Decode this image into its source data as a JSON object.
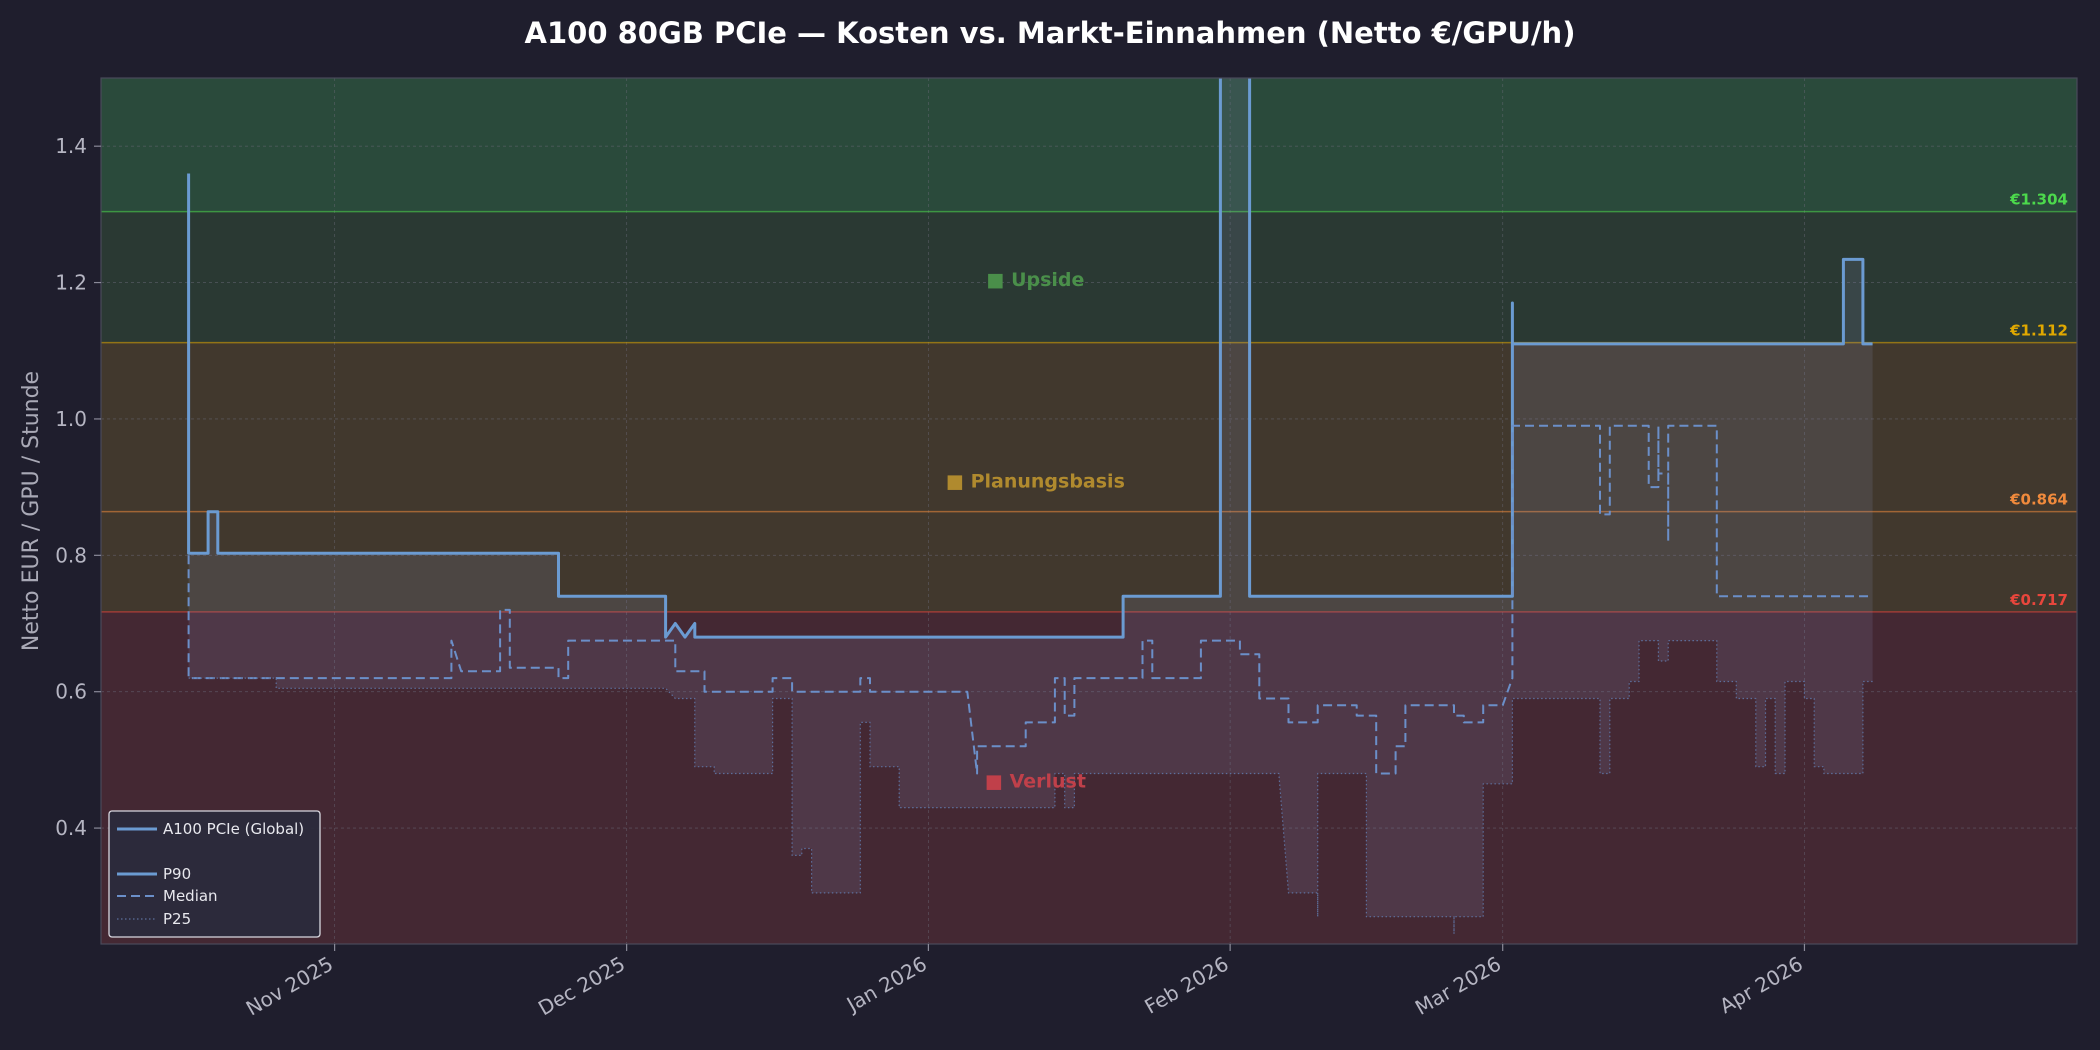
{
  "chart_data": {
    "type": "line",
    "title": "A100 80GB PCIe — Kosten vs. Markt-Einnahmen (Netto €/GPU/h)",
    "xlabel": "",
    "ylabel": "Netto EUR / GPU / Stunde",
    "xlim": [
      "2025-10-08",
      "2026-04-29"
    ],
    "ylim": [
      0.23,
      1.5
    ],
    "yticks": [
      0.4,
      0.6,
      0.8,
      1.0,
      1.2,
      1.4
    ],
    "ytick_labels": [
      "0.4",
      "0.6",
      "0.8",
      "1.0",
      "1.2",
      "1.4"
    ],
    "xticks": [
      "2025-11-01",
      "2025-12-01",
      "2026-01-01",
      "2026-02-01",
      "2026-03-01",
      "2026-04-01"
    ],
    "xtick_labels": [
      "Nov 2025",
      "Dec 2025",
      "Jan 2026",
      "Feb 2026",
      "Mar 2026",
      "Apr 2026"
    ],
    "grid": true,
    "thresholds": [
      {
        "value": 1.304,
        "label": "€1.304",
        "color": "#4cd94c"
      },
      {
        "value": 1.112,
        "label": "€1.112",
        "color": "#e0a800"
      },
      {
        "value": 0.864,
        "label": "€0.864",
        "color": "#f08a3c"
      },
      {
        "value": 0.717,
        "label": "€0.717",
        "color": "#e8463c"
      }
    ],
    "zones": [
      {
        "name": "Upside",
        "label": "■ Upside",
        "from": 1.112,
        "to": 1.5,
        "color": "#4a8f4a",
        "label_y": 1.205
      },
      {
        "name": "Planungsbasis",
        "label": "■ Planungsbasis",
        "from": 0.717,
        "to": 1.112,
        "color": "#b08a2e",
        "label_y": 0.91
      },
      {
        "name": "Verlust",
        "label": "■ Verlust",
        "from": 0.23,
        "to": 0.717,
        "color": "#c0404a",
        "label_y": 0.47
      }
    ],
    "zone_label_date": "2026-01-12",
    "legend": {
      "position": "lower-left",
      "entries": [
        {
          "label": "A100 PCIe (Global)",
          "style": "solid"
        },
        {
          "label": "P90",
          "style": "solid"
        },
        {
          "label": "Median",
          "style": "dashed"
        },
        {
          "label": "P25",
          "style": "dotted"
        }
      ]
    },
    "series": [
      {
        "name": "P90",
        "style": "solid",
        "color": "#6b9bd2",
        "points": [
          [
            "2025-10-17",
            1.36
          ],
          [
            "2025-10-17",
            0.803
          ],
          [
            "2025-10-19",
            0.803
          ],
          [
            "2025-10-19",
            0.864
          ],
          [
            "2025-10-20",
            0.864
          ],
          [
            "2025-10-20",
            0.803
          ],
          [
            "2025-11-24",
            0.803
          ],
          [
            "2025-11-24",
            0.74
          ],
          [
            "2025-12-05",
            0.74
          ],
          [
            "2025-12-05",
            0.68
          ],
          [
            "2025-12-06",
            0.7
          ],
          [
            "2025-12-07",
            0.68
          ],
          [
            "2025-12-08",
            0.7
          ],
          [
            "2025-12-08",
            0.68
          ],
          [
            "2026-01-21",
            0.68
          ],
          [
            "2026-01-21",
            0.74
          ],
          [
            "2026-01-31",
            0.74
          ],
          [
            "2026-01-31",
            1.6
          ],
          [
            "2026-02-03",
            1.6
          ],
          [
            "2026-02-03",
            0.74
          ],
          [
            "2026-03-02",
            0.74
          ],
          [
            "2026-03-02",
            1.17
          ],
          [
            "2026-03-02",
            1.11
          ],
          [
            "2026-04-05",
            1.11
          ],
          [
            "2026-04-05",
            1.234
          ],
          [
            "2026-04-07",
            1.234
          ],
          [
            "2026-04-07",
            1.11
          ],
          [
            "2026-04-08",
            1.11
          ]
        ]
      },
      {
        "name": "Median",
        "style": "dashed",
        "color": "#6b8fc9",
        "points": [
          [
            "2025-10-17",
            0.8
          ],
          [
            "2025-10-17",
            0.62
          ],
          [
            "2025-11-13",
            0.62
          ],
          [
            "2025-11-13",
            0.675
          ],
          [
            "2025-11-14",
            0.63
          ],
          [
            "2025-11-18",
            0.63
          ],
          [
            "2025-11-18",
            0.72
          ],
          [
            "2025-11-19",
            0.72
          ],
          [
            "2025-11-19",
            0.635
          ],
          [
            "2025-11-24",
            0.635
          ],
          [
            "2025-11-24",
            0.62
          ],
          [
            "2025-11-25",
            0.62
          ],
          [
            "2025-11-25",
            0.675
          ],
          [
            "2025-12-06",
            0.675
          ],
          [
            "2025-12-06",
            0.63
          ],
          [
            "2025-12-09",
            0.63
          ],
          [
            "2025-12-09",
            0.6
          ],
          [
            "2025-12-16",
            0.6
          ],
          [
            "2025-12-16",
            0.62
          ],
          [
            "2025-12-18",
            0.62
          ],
          [
            "2025-12-18",
            0.6
          ],
          [
            "2025-12-25",
            0.6
          ],
          [
            "2025-12-25",
            0.62
          ],
          [
            "2025-12-26",
            0.62
          ],
          [
            "2025-12-26",
            0.6
          ],
          [
            "2026-01-05",
            0.6
          ],
          [
            "2026-01-06",
            0.48
          ],
          [
            "2026-01-06",
            0.52
          ],
          [
            "2026-01-11",
            0.52
          ],
          [
            "2026-01-11",
            0.555
          ],
          [
            "2026-01-14",
            0.555
          ],
          [
            "2026-01-14",
            0.62
          ],
          [
            "2026-01-15",
            0.62
          ],
          [
            "2026-01-15",
            0.565
          ],
          [
            "2026-01-16",
            0.565
          ],
          [
            "2026-01-16",
            0.62
          ],
          [
            "2026-01-23",
            0.62
          ],
          [
            "2026-01-23",
            0.675
          ],
          [
            "2026-01-24",
            0.675
          ],
          [
            "2026-01-24",
            0.62
          ],
          [
            "2026-01-29",
            0.62
          ],
          [
            "2026-01-29",
            0.675
          ],
          [
            "2026-02-02",
            0.675
          ],
          [
            "2026-02-02",
            0.655
          ],
          [
            "2026-02-04",
            0.655
          ],
          [
            "2026-02-04",
            0.59
          ],
          [
            "2026-02-07",
            0.59
          ],
          [
            "2026-02-07",
            0.555
          ],
          [
            "2026-02-10",
            0.555
          ],
          [
            "2026-02-10",
            0.58
          ],
          [
            "2026-02-14",
            0.58
          ],
          [
            "2026-02-14",
            0.565
          ],
          [
            "2026-02-16",
            0.565
          ],
          [
            "2026-02-16",
            0.48
          ],
          [
            "2026-02-18",
            0.48
          ],
          [
            "2026-02-18",
            0.52
          ],
          [
            "2026-02-19",
            0.52
          ],
          [
            "2026-02-19",
            0.58
          ],
          [
            "2026-02-24",
            0.58
          ],
          [
            "2026-02-24",
            0.565
          ],
          [
            "2026-02-25",
            0.565
          ],
          [
            "2026-02-25",
            0.555
          ],
          [
            "2026-02-27",
            0.555
          ],
          [
            "2026-02-27",
            0.58
          ],
          [
            "2026-03-01",
            0.58
          ],
          [
            "2026-03-02",
            0.62
          ],
          [
            "2026-03-02",
            0.99
          ],
          [
            "2026-03-11",
            0.99
          ],
          [
            "2026-03-11",
            0.86
          ],
          [
            "2026-03-12",
            0.86
          ],
          [
            "2026-03-12",
            0.99
          ],
          [
            "2026-03-16",
            0.99
          ],
          [
            "2026-03-16",
            0.9
          ],
          [
            "2026-03-17",
            0.9
          ],
          [
            "2026-03-17",
            0.99
          ],
          [
            "2026-03-17",
            0.92
          ],
          [
            "2026-03-18",
            0.92
          ],
          [
            "2026-03-18",
            0.82
          ],
          [
            "2026-03-18",
            0.99
          ],
          [
            "2026-03-23",
            0.99
          ],
          [
            "2026-03-23",
            0.74
          ],
          [
            "2026-04-08",
            0.74
          ]
        ]
      },
      {
        "name": "P25",
        "style": "dotted",
        "color": "#5d6f9c",
        "points": [
          [
            "2025-10-17",
            0.62
          ],
          [
            "2025-10-26",
            0.62
          ],
          [
            "2025-10-26",
            0.605
          ],
          [
            "2025-12-05",
            0.605
          ],
          [
            "2025-12-06",
            0.59
          ],
          [
            "2025-12-08",
            0.59
          ],
          [
            "2025-12-08",
            0.49
          ],
          [
            "2025-12-10",
            0.49
          ],
          [
            "2025-12-10",
            0.48
          ],
          [
            "2025-12-16",
            0.48
          ],
          [
            "2025-12-16",
            0.59
          ],
          [
            "2025-12-18",
            0.59
          ],
          [
            "2025-12-18",
            0.36
          ],
          [
            "2025-12-19",
            0.36
          ],
          [
            "2025-12-19",
            0.37
          ],
          [
            "2025-12-20",
            0.37
          ],
          [
            "2025-12-20",
            0.305
          ],
          [
            "2025-12-25",
            0.305
          ],
          [
            "2025-12-25",
            0.555
          ],
          [
            "2025-12-26",
            0.555
          ],
          [
            "2025-12-26",
            0.49
          ],
          [
            "2025-12-29",
            0.49
          ],
          [
            "2025-12-29",
            0.43
          ],
          [
            "2026-01-14",
            0.43
          ],
          [
            "2026-01-14",
            0.48
          ],
          [
            "2026-01-15",
            0.48
          ],
          [
            "2026-01-15",
            0.43
          ],
          [
            "2026-01-16",
            0.43
          ],
          [
            "2026-01-16",
            0.48
          ],
          [
            "2026-02-06",
            0.48
          ],
          [
            "2026-02-07",
            0.305
          ],
          [
            "2026-02-10",
            0.305
          ],
          [
            "2026-02-10",
            0.27
          ],
          [
            "2026-02-10",
            0.48
          ],
          [
            "2026-02-15",
            0.48
          ],
          [
            "2026-02-15",
            0.27
          ],
          [
            "2026-02-24",
            0.27
          ],
          [
            "2026-02-24",
            0.245
          ],
          [
            "2026-02-24",
            0.27
          ],
          [
            "2026-02-27",
            0.27
          ],
          [
            "2026-02-27",
            0.465
          ],
          [
            "2026-03-02",
            0.465
          ],
          [
            "2026-03-02",
            0.59
          ],
          [
            "2026-03-11",
            0.59
          ],
          [
            "2026-03-11",
            0.48
          ],
          [
            "2026-03-12",
            0.48
          ],
          [
            "2026-03-12",
            0.59
          ],
          [
            "2026-03-14",
            0.59
          ],
          [
            "2026-03-14",
            0.615
          ],
          [
            "2026-03-15",
            0.615
          ],
          [
            "2026-03-15",
            0.675
          ],
          [
            "2026-03-17",
            0.675
          ],
          [
            "2026-03-17",
            0.645
          ],
          [
            "2026-03-18",
            0.645
          ],
          [
            "2026-03-18",
            0.675
          ],
          [
            "2026-03-23",
            0.675
          ],
          [
            "2026-03-23",
            0.615
          ],
          [
            "2026-03-25",
            0.615
          ],
          [
            "2026-03-25",
            0.59
          ],
          [
            "2026-03-27",
            0.59
          ],
          [
            "2026-03-27",
            0.49
          ],
          [
            "2026-03-28",
            0.49
          ],
          [
            "2026-03-28",
            0.59
          ],
          [
            "2026-03-29",
            0.59
          ],
          [
            "2026-03-29",
            0.48
          ],
          [
            "2026-03-30",
            0.48
          ],
          [
            "2026-03-30",
            0.615
          ],
          [
            "2026-04-01",
            0.615
          ],
          [
            "2026-04-01",
            0.59
          ],
          [
            "2026-04-02",
            0.59
          ],
          [
            "2026-04-02",
            0.49
          ],
          [
            "2026-04-03",
            0.49
          ],
          [
            "2026-04-03",
            0.48
          ],
          [
            "2026-04-07",
            0.48
          ],
          [
            "2026-04-07",
            0.615
          ],
          [
            "2026-04-08",
            0.615
          ]
        ]
      }
    ],
    "colors": {
      "background": "#1f1e2d",
      "plot_border": "#4a4a5a",
      "grid": "#6a6a78",
      "band_fill": "#8a8fb8"
    }
  }
}
